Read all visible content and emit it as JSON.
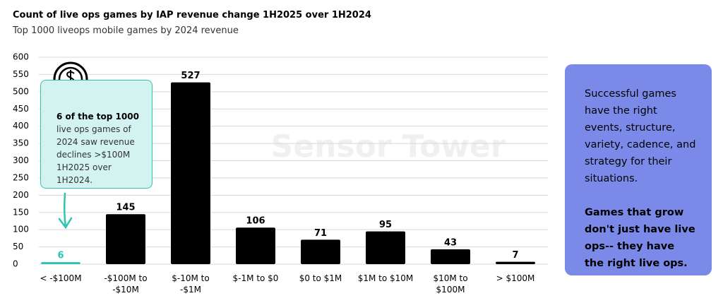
{
  "chart_data": {
    "type": "bar",
    "title": "Count of live ops games by IAP revenue change 1H2025 over 1H2024",
    "subtitle": "Top 1000 liveops mobile games by 2024 revenue",
    "categories": [
      "< -$100M",
      "-$100M to -$10M",
      "$-10M to -$1M",
      "$-1M to $0",
      "$0 to $1M",
      "$1M to $10M",
      "$10M to $100M",
      "> $100M"
    ],
    "values": [
      6,
      145,
      527,
      106,
      71,
      95,
      43,
      7
    ],
    "colors": [
      "#2fc4b2",
      "#000000",
      "#000000",
      "#000000",
      "#000000",
      "#000000",
      "#000000",
      "#000000"
    ],
    "ylim": [
      0,
      600
    ],
    "yticks": [
      0,
      50,
      100,
      150,
      200,
      250,
      300,
      350,
      400,
      450,
      500,
      550,
      600
    ],
    "grid": true,
    "watermark": "Sensor Tower",
    "annotation": {
      "title": "6 of the top 1000",
      "text": "live ops games of 2024 saw revenue declines >$100M 1H2025 over 1H2024."
    },
    "side_panel": {
      "text": "Successful games have the right events, structure, variety, cadence, and strategy for their situations.",
      "emphasis": "Games that grow don't just have live ops-- they have the right live ops."
    }
  }
}
